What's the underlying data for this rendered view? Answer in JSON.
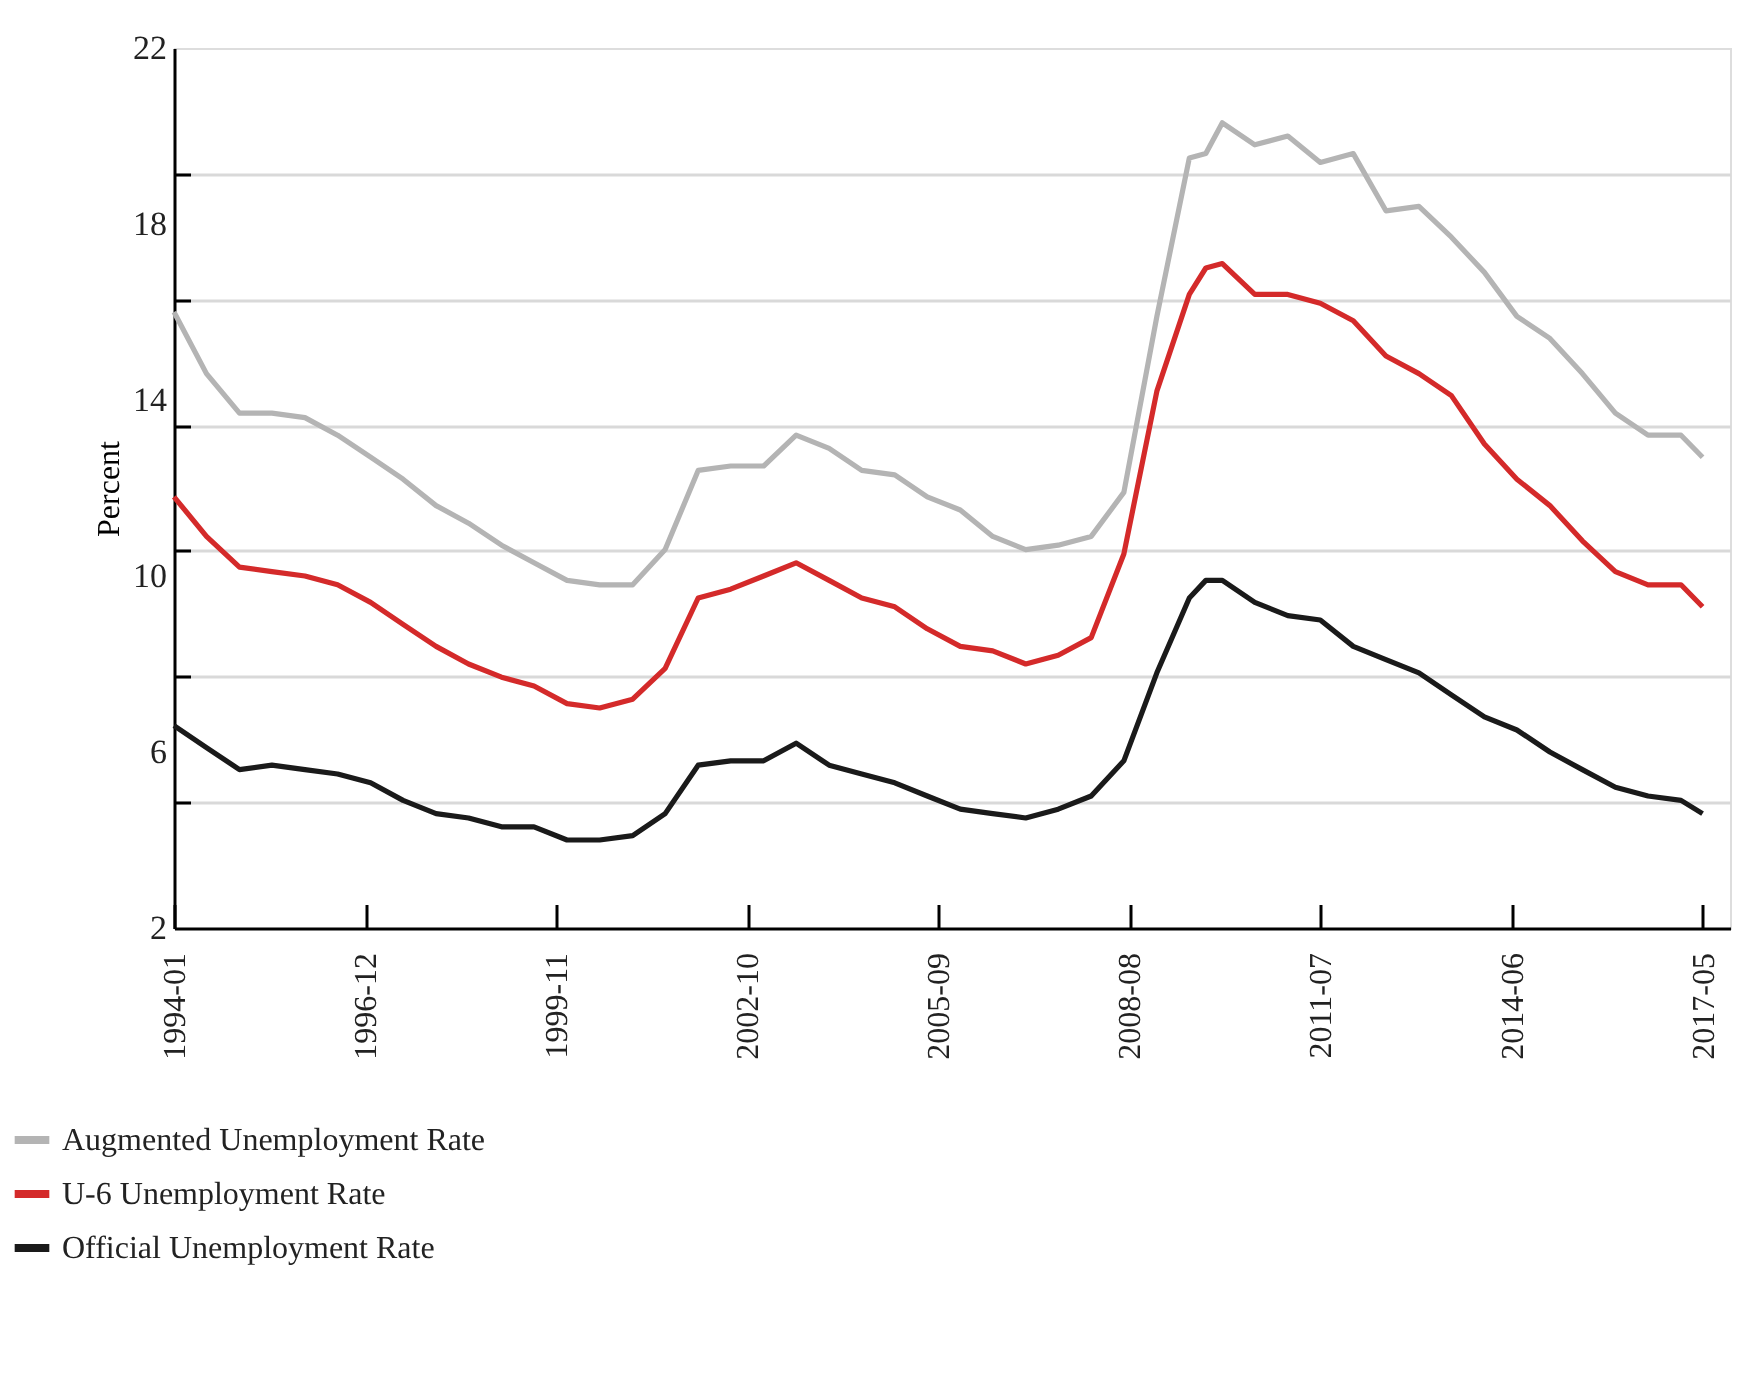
{
  "chart_data": {
    "type": "line",
    "ylabel": "Percent",
    "xlim": [
      "1994-01",
      "2017-10"
    ],
    "ylim": [
      2,
      22
    ],
    "xticks": [
      "1994-01",
      "1996-12",
      "1999-11",
      "2002-10",
      "2005-09",
      "2008-08",
      "2011-07",
      "2014-06",
      "2017-05"
    ],
    "yticks": [
      2,
      {
        "value": 4.86,
        "label": null
      },
      6,
      {
        "value": 7.71,
        "label": null
      },
      10,
      {
        "value": 10.57,
        "label": null
      },
      {
        "value": 13.43,
        "label": null
      },
      14,
      {
        "value": 16.29,
        "label": null
      },
      18,
      {
        "value": 19.14,
        "label": null
      },
      22
    ],
    "grid": "y",
    "legend": "bottom",
    "x": [
      "1994-01",
      "1994-07",
      "1995-01",
      "1995-07",
      "1996-01",
      "1996-07",
      "1997-01",
      "1997-07",
      "1998-01",
      "1998-07",
      "1999-01",
      "1999-07",
      "2000-01",
      "2000-07",
      "2001-01",
      "2001-07",
      "2002-01",
      "2002-07",
      "2003-01",
      "2003-07",
      "2004-01",
      "2004-07",
      "2005-01",
      "2005-07",
      "2006-01",
      "2006-07",
      "2007-01",
      "2007-07",
      "2008-01",
      "2008-07",
      "2009-01",
      "2009-07",
      "2009-10",
      "2010-01",
      "2010-07",
      "2011-01",
      "2011-07",
      "2012-01",
      "2012-07",
      "2013-01",
      "2013-07",
      "2014-01",
      "2014-07",
      "2015-01",
      "2015-07",
      "2016-01",
      "2016-07",
      "2017-01",
      "2017-05"
    ],
    "series": [
      {
        "name": "Augmented Unemployment Rate",
        "color": "#b4b4b4",
        "values": [
          16.0,
          14.6,
          13.7,
          13.7,
          13.6,
          13.2,
          12.7,
          12.2,
          11.6,
          11.2,
          10.7,
          10.3,
          9.9,
          9.8,
          9.8,
          10.6,
          12.4,
          12.5,
          12.5,
          13.2,
          12.9,
          12.4,
          12.3,
          11.8,
          11.5,
          10.9,
          10.6,
          10.7,
          10.9,
          11.9,
          15.9,
          19.5,
          19.6,
          20.3,
          19.8,
          20.0,
          19.4,
          19.6,
          18.3,
          18.4,
          17.7,
          16.9,
          15.9,
          15.4,
          14.6,
          13.7,
          13.2,
          13.2,
          12.7
        ]
      },
      {
        "name": "U-6 Unemployment Rate",
        "color": "#d42a2a",
        "values": [
          11.8,
          10.9,
          10.2,
          10.1,
          10.0,
          9.8,
          9.4,
          8.9,
          8.4,
          8.0,
          7.7,
          7.5,
          7.1,
          7.0,
          7.2,
          7.9,
          9.5,
          9.7,
          10.0,
          10.3,
          9.9,
          9.5,
          9.3,
          8.8,
          8.4,
          8.3,
          8.0,
          8.2,
          8.6,
          10.5,
          14.2,
          16.4,
          17.0,
          17.1,
          16.4,
          16.4,
          16.2,
          15.8,
          15.0,
          14.6,
          14.1,
          13.0,
          12.2,
          11.6,
          10.8,
          10.1,
          9.8,
          9.8,
          9.3
        ]
      },
      {
        "name": "Official Unemployment Rate",
        "color": "#1a1a1a",
        "values": [
          6.6,
          6.1,
          5.6,
          5.7,
          5.6,
          5.5,
          5.3,
          4.9,
          4.6,
          4.5,
          4.3,
          4.3,
          4.0,
          4.0,
          4.1,
          4.6,
          5.7,
          5.8,
          5.8,
          6.2,
          5.7,
          5.5,
          5.3,
          5.0,
          4.7,
          4.6,
          4.5,
          4.7,
          5.0,
          5.8,
          7.8,
          9.5,
          9.9,
          9.9,
          9.4,
          9.1,
          9.0,
          8.4,
          8.1,
          7.8,
          7.3,
          6.8,
          6.5,
          6.0,
          5.6,
          5.2,
          5.0,
          4.9,
          4.6
        ]
      }
    ]
  }
}
